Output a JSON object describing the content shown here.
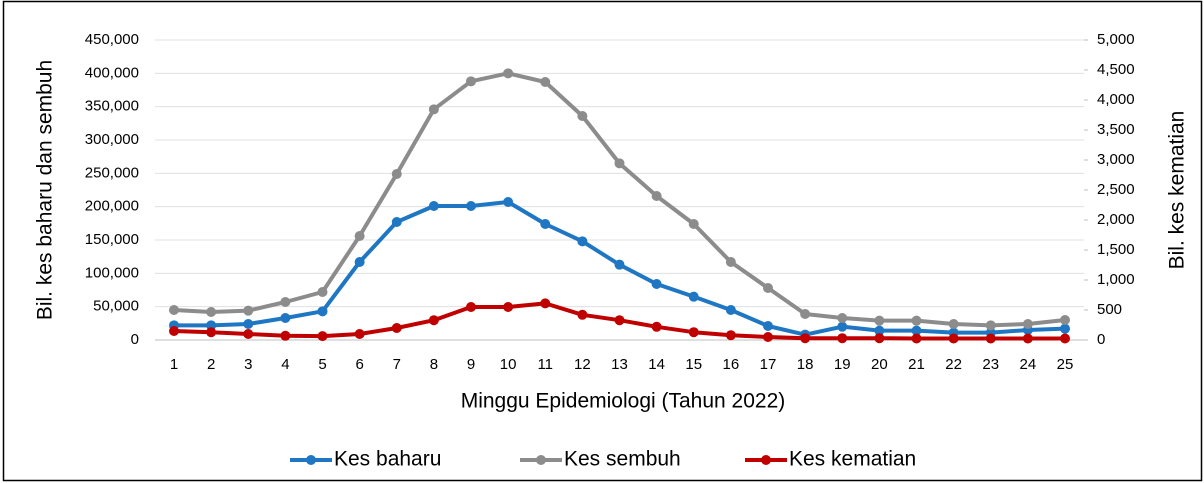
{
  "chart_data": {
    "type": "line",
    "x_label": "Minggu Epidemiologi (Tahun 2022)",
    "y_label": "Bil. kes baharu dan sembuh",
    "y2_label": "Bil. kes kematian",
    "categories": [
      1,
      2,
      3,
      4,
      5,
      6,
      7,
      8,
      9,
      10,
      11,
      12,
      13,
      14,
      15,
      16,
      17,
      18,
      19,
      20,
      21,
      22,
      23,
      24,
      25
    ],
    "series": [
      {
        "name": "Kes baharu",
        "color": "#1f77c4",
        "values": [
          22000,
          22000,
          24000,
          33000,
          43000,
          117000,
          177000,
          201000,
          201000,
          207000,
          174000,
          148000,
          113000,
          84000,
          65000,
          45000,
          21000,
          8000,
          20000,
          14000,
          14000,
          11000,
          11000,
          15000,
          17000
        ]
      },
      {
        "name": "Kes sembuh",
        "color": "#8c8c8c",
        "values": [
          45000,
          42000,
          44000,
          57000,
          72000,
          156000,
          249000,
          346000,
          388000,
          400000,
          387000,
          336000,
          265000,
          216000,
          174000,
          117000,
          78000,
          39000,
          33000,
          29000,
          29000,
          24000,
          22000,
          24000,
          30000
        ]
      },
      {
        "name": "Kes kematian",
        "color": "#c00000",
        "axis": "y2",
        "values": [
          150,
          130,
          100,
          70,
          65,
          100,
          200,
          330,
          550,
          550,
          610,
          420,
          330,
          220,
          130,
          80,
          50,
          30,
          30,
          30,
          25,
          25,
          25,
          25,
          25
        ]
      }
    ],
    "ylim": [
      0,
      450000
    ],
    "yticks": [
      0,
      {
        "value": 50000,
        "label": "50,000"
      },
      {
        "value": 100000,
        "label": "100,000"
      },
      {
        "value": 150000,
        "label": "150,000"
      },
      {
        "value": 200000,
        "label": "200,000"
      },
      {
        "value": 250000,
        "label": "250,000"
      },
      {
        "value": 300000,
        "label": "300,000"
      },
      {
        "value": 350000,
        "label": "350,000"
      },
      {
        "value": 400000,
        "label": "400,000"
      },
      {
        "value": 450000,
        "label": "450,000"
      }
    ],
    "y2lim": [
      0,
      5000
    ],
    "y2ticks": [
      0,
      500,
      {
        "value": 1000,
        "label": "1,000"
      },
      {
        "value": 1500,
        "label": "1,500"
      },
      {
        "value": 2000,
        "label": "2,000"
      },
      {
        "value": 2500,
        "label": "2,500"
      },
      {
        "value": 3000,
        "label": "3,000"
      },
      {
        "value": 3500,
        "label": "3,500"
      },
      {
        "value": 4000,
        "label": "4,000"
      },
      {
        "value": 4500,
        "label": "4,500"
      },
      {
        "value": 5000,
        "label": "5,000"
      }
    ],
    "grid": true,
    "legend": "bottom"
  }
}
